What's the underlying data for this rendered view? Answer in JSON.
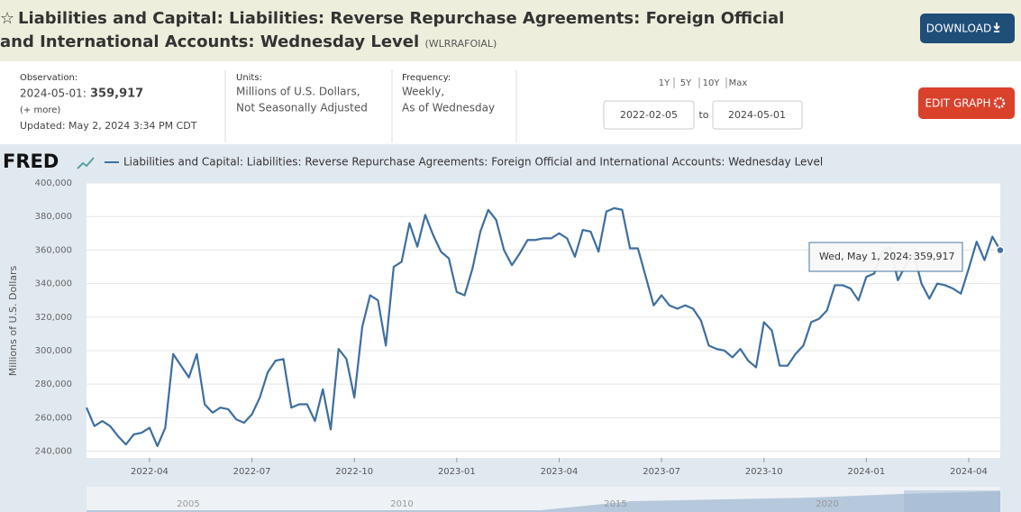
{
  "header": {
    "title": "Liabilities and Capital: Liabilities: Reverse Repurchase Agreements: Foreign Official and International Accounts: Wednesday Level",
    "series_id": "(WLRRAFOIAL)",
    "download": "DOWNLOAD"
  },
  "info": {
    "observation_label": "Observation:",
    "observation_date": "2024-05-01:",
    "observation_value": "359,917",
    "more": "(+ more)",
    "updated": "Updated: May 2, 2024 3:34 PM CDT",
    "units_label": "Units:",
    "units": [
      "Millions of U.S. Dollars,",
      "Not Seasonally Adjusted"
    ],
    "frequency_label": "Frequency:",
    "frequency": [
      "Weekly,",
      "As of Wednesday"
    ]
  },
  "controls": {
    "ranges": [
      "1Y",
      "5Y",
      "10Y",
      "Max"
    ],
    "start_date": "2022-02-05",
    "to": "to",
    "end_date": "2024-05-01",
    "edit_graph": "EDIT GRAPH"
  },
  "logo": "FRED",
  "chart_data": {
    "type": "line",
    "y_label": "Millions of U.S. Dollars",
    "grid": true,
    "categories": [
      null,
      null,
      null,
      null,
      null,
      null,
      null,
      null,
      "2022-04",
      null,
      null,
      null,
      null,
      null,
      null,
      null,
      null,
      null,
      null,
      null,
      null,
      "2022-07",
      null,
      null,
      null,
      null,
      null,
      null,
      null,
      null,
      null,
      null,
      null,
      null,
      "2022-10",
      null,
      null,
      null,
      null,
      null,
      null,
      null,
      null,
      null,
      null,
      null,
      null,
      "2023-01",
      null,
      null,
      null,
      null,
      null,
      null,
      null,
      null,
      null,
      null,
      null,
      null,
      "2023-04",
      null,
      null,
      null,
      null,
      null,
      null,
      null,
      null,
      null,
      null,
      null,
      null,
      "2023-07",
      null,
      null,
      null,
      null,
      null,
      null,
      null,
      null,
      null,
      null,
      null,
      null,
      "2023-10",
      null,
      null,
      null,
      null,
      null,
      null,
      null,
      null,
      null,
      null,
      null,
      null,
      "2024-01",
      null,
      null,
      null,
      null,
      null,
      null,
      null,
      null,
      null,
      null,
      null,
      null,
      "2024-04",
      null,
      null,
      null,
      null
    ],
    "series": [
      {
        "name": "Liabilities and Capital: Liabilities: Reverse Repurchase Agreements: Foreign Official and International Accounts: Wednesday Level",
        "color": "#3d6f9f",
        "values": [
          266000,
          255000,
          258000,
          255000,
          249000,
          244000,
          250000,
          251000,
          254000,
          243000,
          254000,
          298000,
          291000,
          284000,
          298000,
          268000,
          263000,
          266000,
          265000,
          259000,
          257000,
          262000,
          272000,
          287000,
          294000,
          295000,
          266000,
          268000,
          268000,
          258000,
          277000,
          253000,
          301000,
          295000,
          272000,
          314000,
          333000,
          330000,
          303000,
          350000,
          353000,
          376000,
          362000,
          381000,
          369000,
          359000,
          355000,
          335000,
          333000,
          349000,
          371000,
          384000,
          378000,
          360000,
          351000,
          358000,
          366000,
          366000,
          367000,
          367000,
          370000,
          367000,
          356000,
          372000,
          371000,
          359000,
          383000,
          385000,
          384000,
          361000,
          361000,
          344000,
          327000,
          333000,
          327000,
          325000,
          327000,
          325000,
          318000,
          303000,
          301000,
          300000,
          296000,
          301000,
          294000,
          290000,
          317000,
          312000,
          291000,
          291000,
          298000,
          303000,
          317000,
          319000,
          324000,
          339000,
          339000,
          337000,
          330000,
          344000,
          346000,
          359000,
          362000,
          342000,
          351000,
          358000,
          340000,
          331000,
          340000,
          339000,
          337000,
          334000,
          349000,
          365000,
          354000,
          368000,
          359917
        ]
      }
    ],
    "ylim": [
      236000,
      400000
    ],
    "yticks": [
      {
        "value": 240000,
        "label": "240,000"
      },
      {
        "value": 260000,
        "label": "260,000"
      },
      {
        "value": 280000,
        "label": "280,000"
      },
      {
        "value": 300000,
        "label": "300,000"
      },
      {
        "value": 320000,
        "label": "320,000"
      },
      {
        "value": 340000,
        "label": "340,000"
      },
      {
        "value": 360000,
        "label": "360,000"
      },
      {
        "value": 380000,
        "label": "380,000"
      },
      {
        "value": 400000,
        "label": "400,000"
      }
    ],
    "tooltip": {
      "label": "Wed, May 1, 2024:",
      "value_label": "359,917"
    }
  },
  "navigator": {
    "labels": [
      "2005",
      "2010",
      "2015",
      "2020"
    ]
  }
}
